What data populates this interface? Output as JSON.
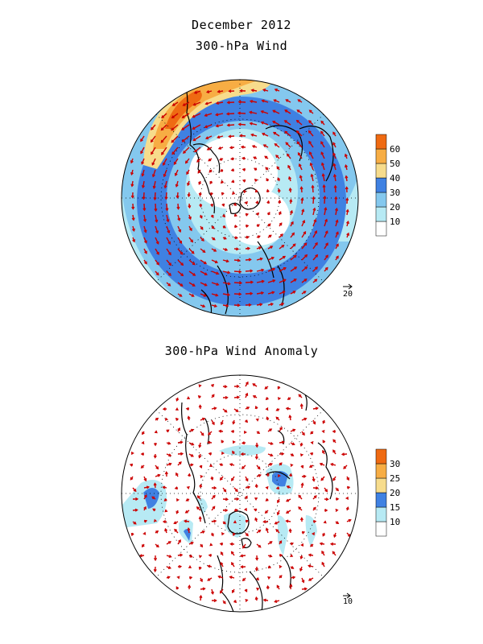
{
  "header": {
    "title": "December 2012",
    "map1_title": "300-hPa Wind",
    "map2_title": "300-hPa Wind Anomaly"
  },
  "map1": {
    "colorbar": {
      "labels": [
        "10",
        "20",
        "30",
        "40",
        "50",
        "60"
      ],
      "colors": [
        "#ffffff",
        "#b7eaf4",
        "#84c8ee",
        "#3f81e2",
        "#f7dc8c",
        "#f7ad44",
        "#ef6a12"
      ]
    },
    "reference_vector": "20"
  },
  "map2": {
    "colorbar": {
      "labels": [
        "10",
        "15",
        "20",
        "25",
        "30"
      ],
      "colors": [
        "#ffffff",
        "#b7eaf4",
        "#3f81e2",
        "#f7dc8c",
        "#f7ad44",
        "#ef6a12"
      ]
    },
    "reference_vector": "10"
  },
  "colors": {
    "arrow": "#cc0000",
    "coast": "#000000",
    "light_blue": "#b7eaf4",
    "mid_blue": "#84c8ee",
    "blue": "#3f81e2",
    "yellow": "#f7dc8c",
    "orange": "#f7ad44",
    "dark_orange": "#ef6a12"
  }
}
